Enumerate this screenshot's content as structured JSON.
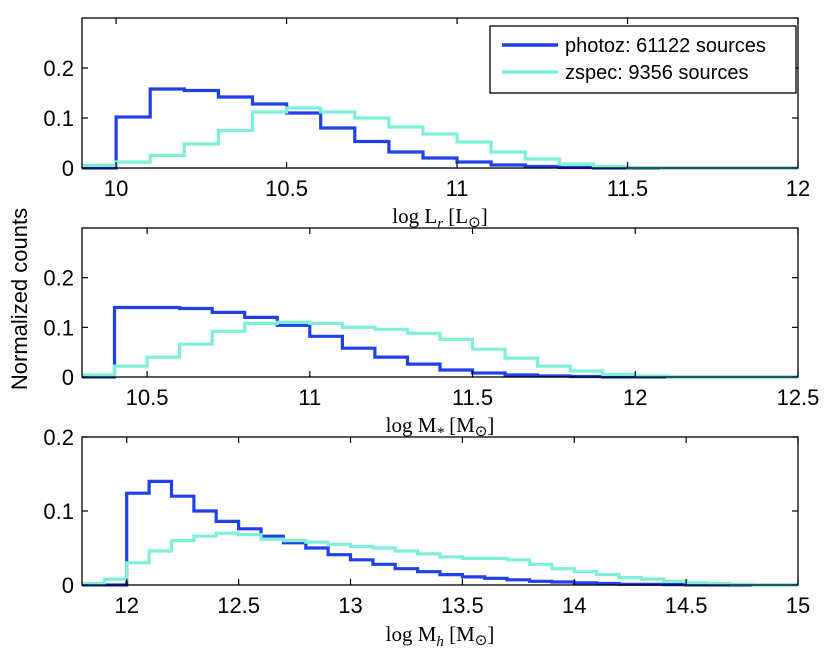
{
  "ylabel": "Normalized counts",
  "legend": [
    {
      "name": "photoz: 61122 sources",
      "color": "#2040e8"
    },
    {
      "name": "zspec: 9356 sources",
      "color": "#7ff0d8"
    }
  ],
  "colors": {
    "photoz": "#2040e8",
    "zspec": "#7ff0d8",
    "axes": "#000000"
  },
  "chart_data": [
    {
      "type": "histogram",
      "xlabel": {
        "prefix": "log L",
        "sub": "r",
        "unit": "[L",
        "sun": "⊙",
        "close": "]"
      },
      "xlim": [
        9.9,
        12
      ],
      "ylim": [
        0,
        0.3
      ],
      "xticks": [
        10,
        10.5,
        11,
        11.5,
        12
      ],
      "xtick_labels": [
        "10",
        "10.5",
        "11",
        "11.5",
        "12"
      ],
      "yticks": [
        0,
        0.1,
        0.2
      ],
      "ytick_labels": [
        "0",
        "0.1",
        "0.2"
      ],
      "legend_location": "top-right",
      "series": [
        {
          "name": "photoz: 61122 sources",
          "edges": [
            9.9,
            10,
            10.1,
            10.2,
            10.3,
            10.4,
            10.5,
            10.6,
            10.7,
            10.8,
            10.9,
            11,
            11.1,
            11.2,
            11.3,
            11.4,
            12
          ],
          "values": [
            0,
            0.102,
            0.158,
            0.155,
            0.142,
            0.128,
            0.11,
            0.08,
            0.053,
            0.032,
            0.02,
            0.012,
            0.006,
            0.003,
            0.001,
            0
          ]
        },
        {
          "name": "zspec: 9356 sources",
          "edges": [
            9.9,
            10,
            10.1,
            10.2,
            10.3,
            10.4,
            10.5,
            10.6,
            10.7,
            10.8,
            10.9,
            11,
            11.1,
            11.2,
            11.3,
            11.4,
            11.5,
            11.6,
            12
          ],
          "values": [
            0.005,
            0.012,
            0.025,
            0.048,
            0.075,
            0.112,
            0.12,
            0.112,
            0.1,
            0.082,
            0.068,
            0.052,
            0.032,
            0.018,
            0.008,
            0.003,
            0.001,
            0
          ]
        }
      ]
    },
    {
      "type": "histogram",
      "xlabel": {
        "prefix": "log M",
        "sub": "*",
        "unit": "[M",
        "sun": "⊙",
        "close": "]"
      },
      "xlim": [
        10.3,
        12.5
      ],
      "ylim": [
        0,
        0.3
      ],
      "xticks": [
        10.5,
        11,
        11.5,
        12,
        12.5
      ],
      "xtick_labels": [
        "10.5",
        "11",
        "11.5",
        "12",
        "12.5"
      ],
      "yticks": [
        0,
        0.1,
        0.2
      ],
      "ytick_labels": [
        "0",
        "0.1",
        "0.2"
      ],
      "series": [
        {
          "name": "photoz: 61122 sources",
          "edges": [
            10.3,
            10.4,
            10.5,
            10.6,
            10.7,
            10.8,
            10.9,
            11,
            11.1,
            11.2,
            11.3,
            11.4,
            11.5,
            11.6,
            11.7,
            11.8,
            11.9,
            12.5
          ],
          "values": [
            0,
            0.14,
            0.14,
            0.138,
            0.13,
            0.12,
            0.104,
            0.082,
            0.058,
            0.04,
            0.026,
            0.014,
            0.008,
            0.004,
            0.002,
            0.001,
            0
          ]
        },
        {
          "name": "zspec: 9356 sources",
          "edges": [
            10.3,
            10.4,
            10.5,
            10.6,
            10.7,
            10.8,
            10.9,
            11,
            11.1,
            11.2,
            11.3,
            11.4,
            11.5,
            11.6,
            11.7,
            11.8,
            11.9,
            12,
            12.1,
            12.5
          ],
          "values": [
            0.004,
            0.022,
            0.04,
            0.066,
            0.092,
            0.108,
            0.11,
            0.108,
            0.1,
            0.096,
            0.088,
            0.076,
            0.056,
            0.038,
            0.022,
            0.012,
            0.005,
            0.002,
            0
          ]
        }
      ]
    },
    {
      "type": "histogram",
      "xlabel": {
        "prefix": "log M",
        "sub": "h",
        "unit": "[M",
        "sun": "⊙",
        "close": "]"
      },
      "xlim": [
        11.8,
        15
      ],
      "ylim": [
        0,
        0.2
      ],
      "xticks": [
        12,
        12.5,
        13,
        13.5,
        14,
        14.5,
        15
      ],
      "xtick_labels": [
        "12",
        "12.5",
        "13",
        "13.5",
        "14",
        "14.5",
        "15"
      ],
      "yticks": [
        0,
        0.1,
        0.2
      ],
      "ytick_labels": [
        "0",
        "0.1",
        "0.2"
      ],
      "series": [
        {
          "name": "photoz: 61122 sources",
          "edges": [
            11.8,
            12,
            12.1,
            12.2,
            12.3,
            12.4,
            12.5,
            12.6,
            12.7,
            12.8,
            12.9,
            13,
            13.1,
            13.2,
            13.3,
            13.4,
            13.5,
            13.6,
            13.7,
            13.8,
            13.9,
            14,
            14.1,
            14.2,
            14.3,
            14.4,
            14.5,
            14.6,
            14.7,
            15
          ],
          "values": [
            0,
            0.124,
            0.14,
            0.12,
            0.1,
            0.086,
            0.076,
            0.066,
            0.057,
            0.05,
            0.041,
            0.034,
            0.028,
            0.022,
            0.018,
            0.014,
            0.011,
            0.009,
            0.007,
            0.005,
            0.004,
            0.003,
            0.002,
            0.001,
            0.001,
            0.0005,
            0,
            0,
            0
          ]
        },
        {
          "name": "zspec: 9356 sources",
          "edges": [
            11.8,
            11.9,
            12,
            12.1,
            12.2,
            12.3,
            12.4,
            12.5,
            12.6,
            12.7,
            12.8,
            12.9,
            13,
            13.1,
            13.2,
            13.3,
            13.4,
            13.5,
            13.6,
            13.7,
            13.8,
            13.9,
            14,
            14.1,
            14.2,
            14.3,
            14.4,
            14.5,
            14.6,
            14.7,
            14.8,
            15
          ],
          "values": [
            0.002,
            0.008,
            0.03,
            0.046,
            0.06,
            0.066,
            0.07,
            0.068,
            0.062,
            0.06,
            0.058,
            0.055,
            0.052,
            0.05,
            0.046,
            0.042,
            0.038,
            0.036,
            0.036,
            0.034,
            0.028,
            0.022,
            0.018,
            0.014,
            0.01,
            0.008,
            0.005,
            0.003,
            0.002,
            0.001,
            0
          ]
        }
      ]
    }
  ]
}
